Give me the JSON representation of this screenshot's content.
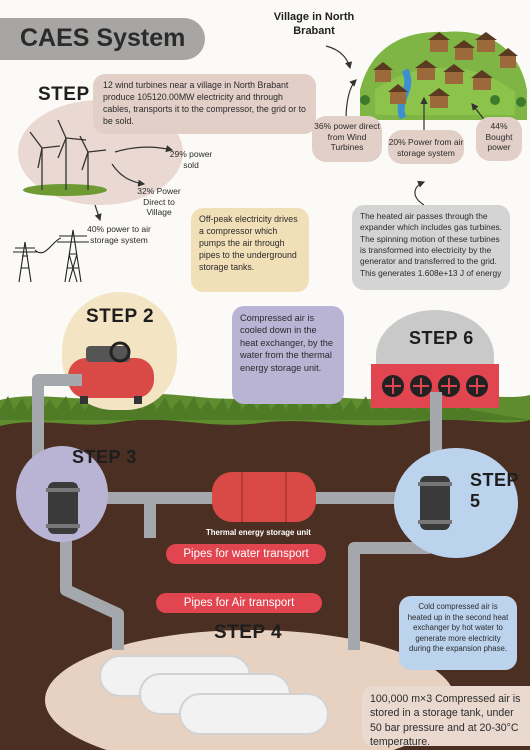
{
  "title": "CAES System",
  "village_label": "Village in North Brabant",
  "steps": {
    "s1": "STEP 1",
    "s2": "STEP 2",
    "s3": "STEP 3",
    "s4": "STEP 4",
    "s5": "STEP 5",
    "s6": "STEP 6"
  },
  "descriptions": {
    "step1": "12 wind turbines near a village in North Brabant produce 105120.00MW electricity and through cables, transports it to the compressor, the grid or to be sold.",
    "step2": "Off-peak electricity drives a compressor which pumps the air through pipes to the underground storage tanks.",
    "step3": "Compressed air is cooled down in the heat exchanger, by the water from the thermal energy storage unit.",
    "step4": "100,000 m×3 Compressed air is stored in a storage tank, under 50 bar pressure and at 20-30°C temperature.",
    "step5": "Cold compressed air is heated up in the second heat exchanger by hot water to generate more electricity during the expansion phase.",
    "step6": "The heated air passes through the expander which includes gas turbines. The spinning motion of these turbines is transformed into electricity by the generator and transferred to the grid. This generates 1.608e+13 J of energy"
  },
  "splits": {
    "sold": "29% power sold",
    "village": "32% Power Direct to Village",
    "storage": "40% power to air storage system"
  },
  "village_sources": {
    "wind": "36% power direct from Wind Turbines",
    "storage": "20% Power from air storage system",
    "bought": "44% Bought power"
  },
  "labels": {
    "thermal_unit": "Thermal energy storage unit",
    "water_pipes": "Pipes for water transport",
    "air_pipes": "Pipes for Air transport"
  },
  "colors": {
    "soil": "#4a2f22",
    "grass": "#5e8c2f",
    "pipe": "#a4a7ab",
    "accent_red": "#e04550",
    "step1_bg": "#ead9d2",
    "step2_bg": "#f3e4c4",
    "step3_bg": "#b9b3d4",
    "step5_bg": "#bcd3ee",
    "step6_bg": "#c9c9c9"
  },
  "icons": [
    "wind-turbine-icon",
    "power-pylon-icon",
    "compressor-icon",
    "heat-exchanger-icon",
    "thermal-tank-icon",
    "storage-tank-icon",
    "turbine-expander-icon",
    "village-icon"
  ]
}
